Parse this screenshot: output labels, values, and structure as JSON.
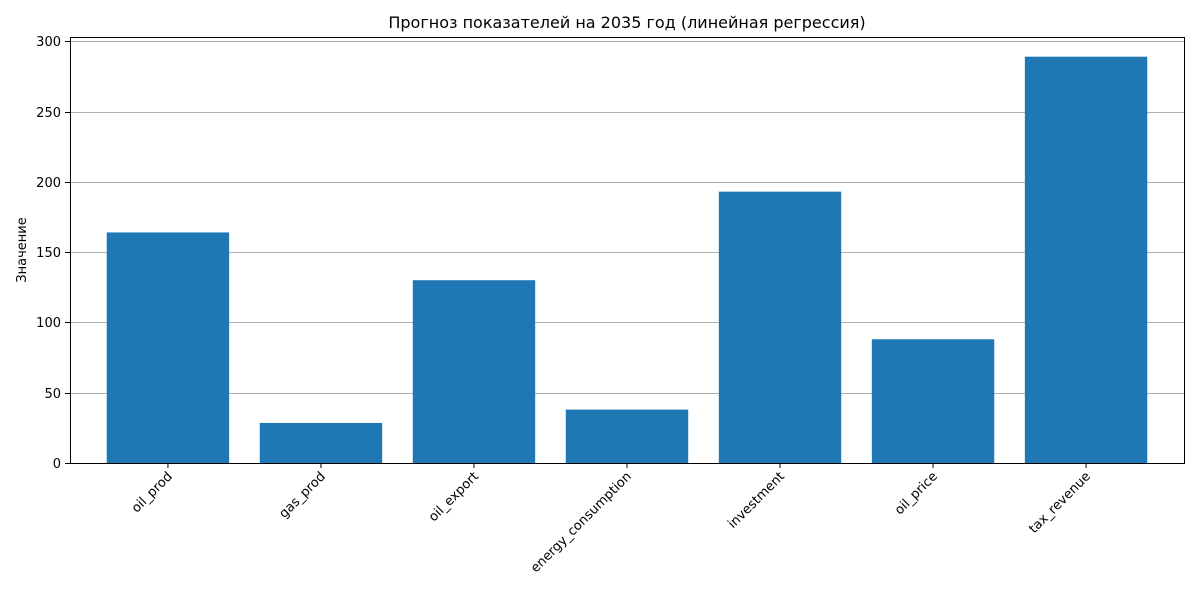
{
  "chart_data": {
    "type": "bar",
    "title": "Прогноз показателей на 2035 год (линейная регрессия)",
    "xlabel": "",
    "ylabel": "Значение",
    "categories": [
      "oil_prod",
      "gas_prod",
      "oil_export",
      "energy_consumption",
      "investment",
      "oil_price",
      "tax_revenue"
    ],
    "values": [
      164,
      28.5,
      130,
      38,
      193,
      88,
      289
    ],
    "ylim": [
      0,
      303
    ],
    "yticks": [
      0,
      50,
      100,
      150,
      200,
      250,
      300
    ],
    "grid": "y-major",
    "xtick_rotation": 45,
    "bar_color": "#1f77b4"
  }
}
